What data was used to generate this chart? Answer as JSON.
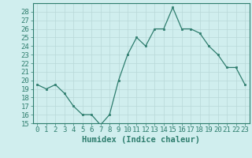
{
  "x": [
    0,
    1,
    2,
    3,
    4,
    5,
    6,
    7,
    8,
    9,
    10,
    11,
    12,
    13,
    14,
    15,
    16,
    17,
    18,
    19,
    20,
    21,
    22,
    23
  ],
  "y": [
    19.5,
    19.0,
    19.5,
    18.5,
    17.0,
    16.0,
    16.0,
    14.8,
    16.0,
    20.0,
    23.0,
    25.0,
    24.0,
    26.0,
    26.0,
    28.5,
    26.0,
    26.0,
    25.5,
    24.0,
    23.0,
    21.5,
    21.5,
    19.5
  ],
  "line_color": "#2e7d6e",
  "marker_color": "#2e7d6e",
  "bg_color": "#d0eeee",
  "grid_color": "#b8d8d8",
  "xlabel": "Humidex (Indice chaleur)",
  "ylim": [
    15,
    29
  ],
  "xlim": [
    -0.5,
    23.5
  ],
  "yticks": [
    15,
    16,
    17,
    18,
    19,
    20,
    21,
    22,
    23,
    24,
    25,
    26,
    27,
    28
  ],
  "xticks": [
    0,
    1,
    2,
    3,
    4,
    5,
    6,
    7,
    8,
    9,
    10,
    11,
    12,
    13,
    14,
    15,
    16,
    17,
    18,
    19,
    20,
    21,
    22,
    23
  ],
  "xtick_labels": [
    "0",
    "1",
    "2",
    "3",
    "4",
    "5",
    "6",
    "7",
    "8",
    "9",
    "10",
    "11",
    "12",
    "13",
    "14",
    "15",
    "16",
    "17",
    "18",
    "19",
    "20",
    "21",
    "22",
    "23"
  ],
  "axis_color": "#2e7d6e",
  "tick_color": "#2e7d6e",
  "label_color": "#2e7d6e",
  "font_size_xlabel": 7.5,
  "font_size_ticks": 6.5
}
